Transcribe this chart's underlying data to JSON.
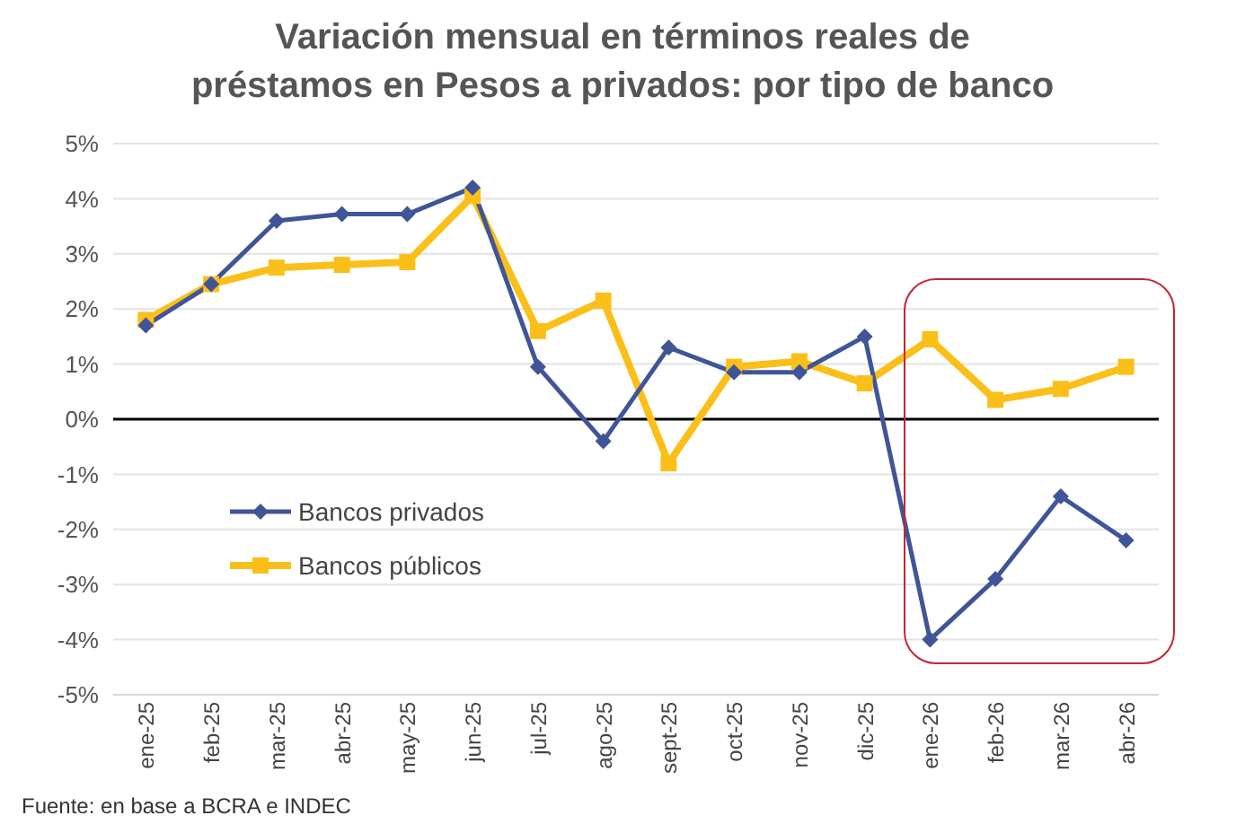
{
  "chart_data": {
    "type": "line",
    "title": "Variación mensual en términos reales de\npréstamos en Pesos a privados: por tipo de banco",
    "categories": [
      "ene-25",
      "feb-25",
      "mar-25",
      "abr-25",
      "may-25",
      "jun-25",
      "jul-25",
      "ago-25",
      "sept-25",
      "oct-25",
      "nov-25",
      "dic-25",
      "ene-26",
      "feb-26",
      "mar-26",
      "abr-26"
    ],
    "series": [
      {
        "name": "Bancos privados",
        "color": "#3f5597",
        "marker": "diamond",
        "values": [
          1.7,
          2.45,
          3.6,
          3.72,
          3.72,
          4.2,
          0.95,
          -0.4,
          1.3,
          0.85,
          0.85,
          1.5,
          -4.0,
          -2.9,
          -1.4,
          -2.2
        ]
      },
      {
        "name": "Bancos públicos",
        "color": "#fbbf1a",
        "marker": "square",
        "values": [
          1.8,
          2.45,
          2.75,
          2.8,
          2.85,
          4.05,
          1.6,
          2.15,
          -0.8,
          0.95,
          1.05,
          0.65,
          1.45,
          0.35,
          0.55,
          0.95
        ]
      }
    ],
    "ylim": [
      -5,
      5
    ],
    "yticks": [
      {
        "value": -5,
        "label": "-5%"
      },
      {
        "value": -4,
        "label": "-4%"
      },
      {
        "value": -3,
        "label": "-3%"
      },
      {
        "value": -2,
        "label": "-2%"
      },
      {
        "value": -1,
        "label": "-1%"
      },
      {
        "value": 0,
        "label": "0%"
      },
      {
        "value": 1,
        "label": "1%"
      },
      {
        "value": 2,
        "label": "2%"
      },
      {
        "value": 3,
        "label": "3%"
      },
      {
        "value": 4,
        "label": "4%"
      },
      {
        "value": 5,
        "label": "5%"
      }
    ],
    "grid": "y",
    "legend": "bottom left",
    "ref_lines": [
      {
        "axis": "y",
        "value": 0,
        "color": "#000000"
      }
    ],
    "annotations": [
      "Fuente: en base a BCRA e INDEC"
    ]
  }
}
